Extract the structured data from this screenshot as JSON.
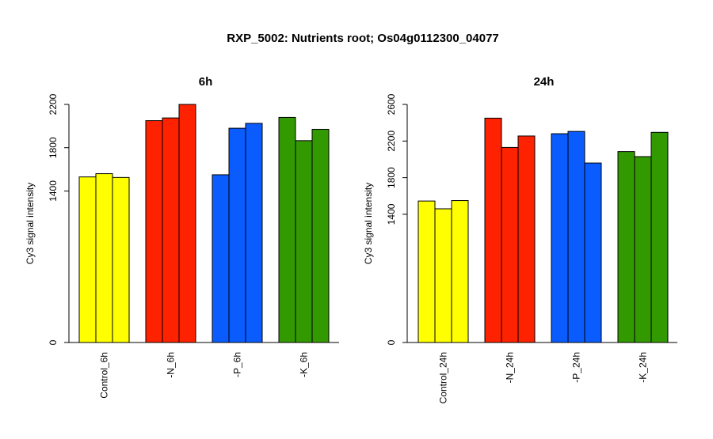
{
  "title": "RXP_5002: Nutrients root; Os04g0112300_04077",
  "colors": {
    "control": "#ffff00",
    "N": "#ff2200",
    "P": "#0a5cff",
    "K": "#339900"
  },
  "chart_data": [
    {
      "type": "bar",
      "title": "6h",
      "ylabel": "Cy3 signal intensity",
      "ylim": [
        0,
        2200
      ],
      "yticks": [
        0,
        1400,
        1800,
        2200
      ],
      "yticks_text": [
        "0",
        "1400",
        "1800",
        "2200"
      ],
      "categories": [
        "Control_6h",
        "-N_6h",
        "-P_6h",
        "-K_6h"
      ],
      "group_colors": [
        "#ffff00",
        "#ff2200",
        "#0a5cff",
        "#339900"
      ],
      "values": [
        [
          1530,
          1560,
          1525
        ],
        [
          2050,
          2075,
          2200
        ],
        [
          1550,
          1980,
          2025
        ],
        [
          2080,
          1865,
          1970
        ]
      ]
    },
    {
      "type": "bar",
      "title": "24h",
      "ylabel": "Cy3 signal intensity",
      "ylim": [
        0,
        2600
      ],
      "yticks": [
        0,
        1400,
        1800,
        2200,
        2600
      ],
      "yticks_text": [
        "0",
        "1400",
        "1800",
        "2200",
        "2600"
      ],
      "categories": [
        "Control_24h",
        "-N_24h",
        "-P_24h",
        "-K_24h"
      ],
      "group_colors": [
        "#ffff00",
        "#ff2200",
        "#0a5cff",
        "#339900"
      ],
      "values": [
        [
          1545,
          1460,
          1550
        ],
        [
          2450,
          2130,
          2255
        ],
        [
          2280,
          2305,
          1960
        ],
        [
          2085,
          2030,
          2295
        ]
      ]
    }
  ]
}
